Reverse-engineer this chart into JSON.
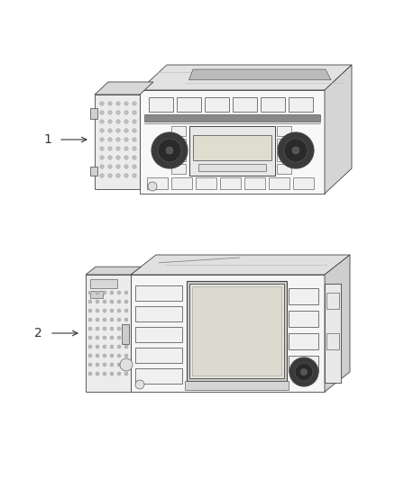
{
  "bg_color": "#ffffff",
  "line_color": "#444444",
  "face_color": "#f5f5f5",
  "face_color_dark": "#e0e0e0",
  "face_color_darker": "#cccccc",
  "face_top": "#e8e8e8",
  "face_right": "#d0d0d0",
  "fig_width": 4.38,
  "fig_height": 5.33,
  "dpi": 100,
  "unit1_label": "1",
  "unit2_label": "2"
}
